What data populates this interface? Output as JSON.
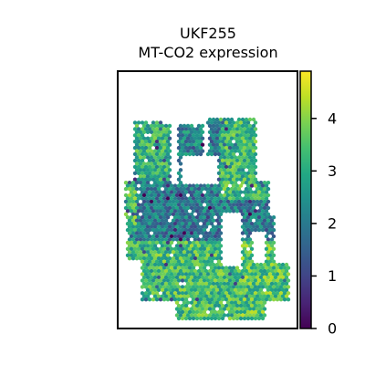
{
  "chart_data": {
    "type": "scatter",
    "title": "UKF255",
    "subtitle": "MT-CO2 expression",
    "xlabel": "",
    "ylabel": "",
    "colorbar": {
      "cmap": "viridis",
      "vmin": 0,
      "vmax": 4.9,
      "ticks": [
        0,
        1,
        2,
        3,
        4
      ],
      "tick_labels": [
        "0",
        "1",
        "2",
        "3",
        "4"
      ]
    },
    "grid": false,
    "legend": "none",
    "point_style": "hexagonal spatial spots",
    "regions": [
      {
        "name": "upper-left lobe",
        "level": 3.1
      },
      {
        "name": "upper-middle lobe",
        "level": 2.2
      },
      {
        "name": "upper-right lobe",
        "level": 3.2
      },
      {
        "name": "middle band",
        "level": 2.0
      },
      {
        "name": "left edge",
        "level": 3.4
      },
      {
        "name": "lower body",
        "level": 3.3
      },
      {
        "name": "bottom right lobe",
        "level": 3.5
      }
    ]
  }
}
